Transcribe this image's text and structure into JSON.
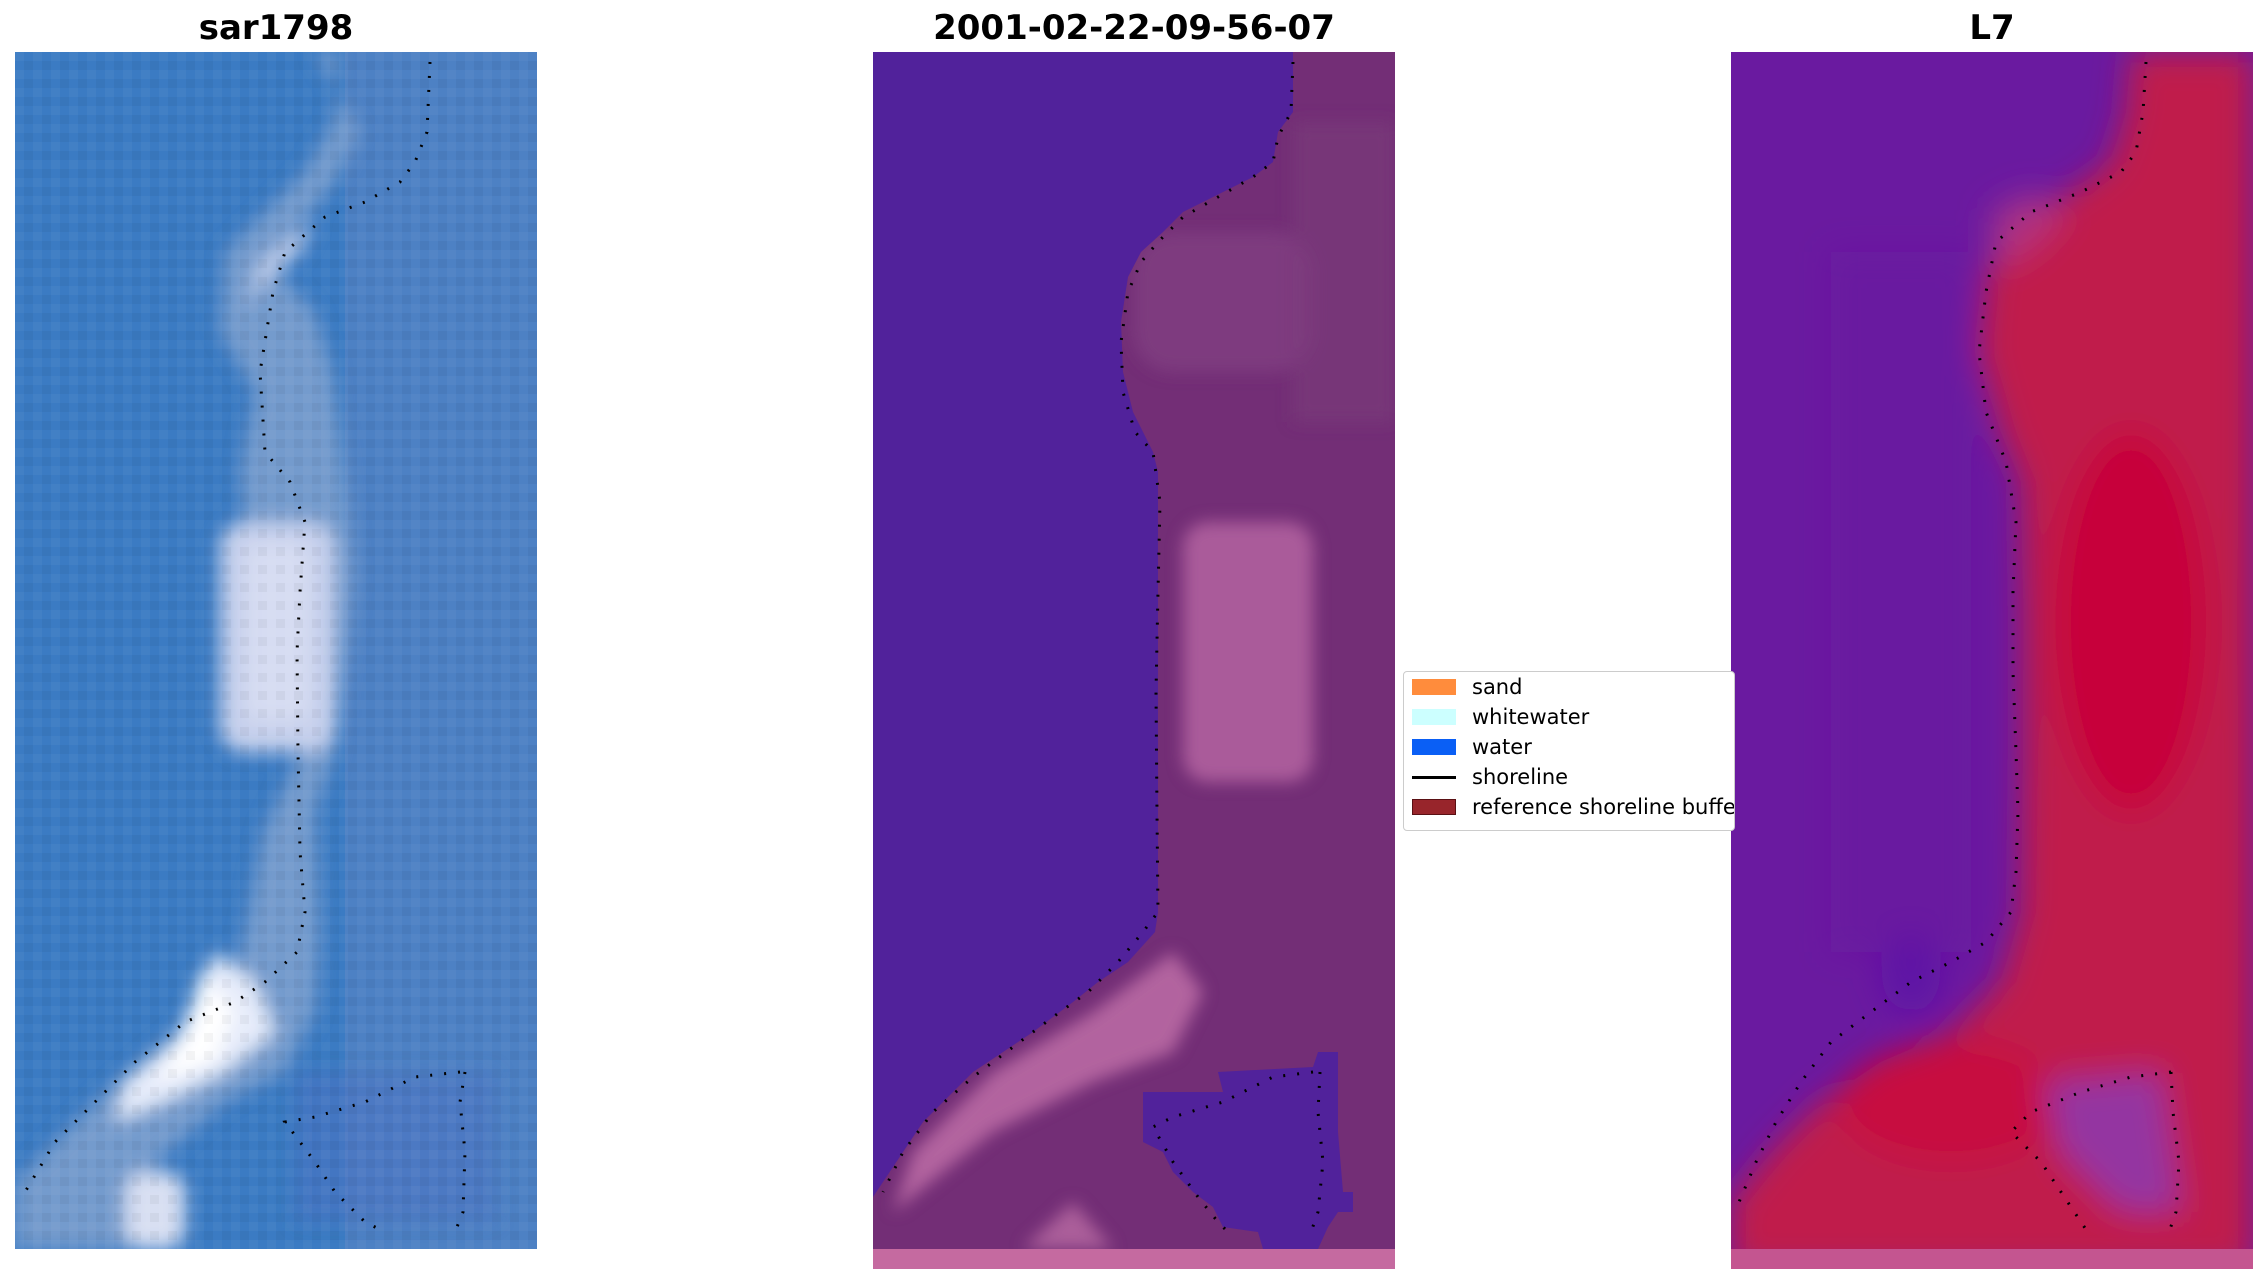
{
  "panels": [
    {
      "title": "sar1798"
    },
    {
      "title": "2001-02-22-09-56-07"
    },
    {
      "title": "L7"
    }
  ],
  "legend": {
    "items": [
      {
        "label": "sand",
        "color": "#ff8c3c",
        "kind": "patch"
      },
      {
        "label": "whitewater",
        "color": "#ccffff",
        "kind": "patch"
      },
      {
        "label": "water",
        "color": "#0a5ff5",
        "kind": "patch"
      },
      {
        "label": "shoreline",
        "color": "#000000",
        "kind": "line"
      },
      {
        "label": "reference shoreline buffer",
        "color": "#98252b",
        "kind": "patch"
      }
    ]
  },
  "colors": {
    "rgb_water": "#3c7dc2",
    "rgb_sand": "#c8d2ea",
    "class_water": "#51229b",
    "class_land": "#732e76",
    "class_highlight": "#b0609f",
    "mndwi_water": "#6a1aa0",
    "mndwi_land": "#c01c4c",
    "mndwi_strong": "#c8083c"
  },
  "icons": {
    "shoreline": "dotted-shoreline",
    "buffer": "reference-buffer"
  }
}
